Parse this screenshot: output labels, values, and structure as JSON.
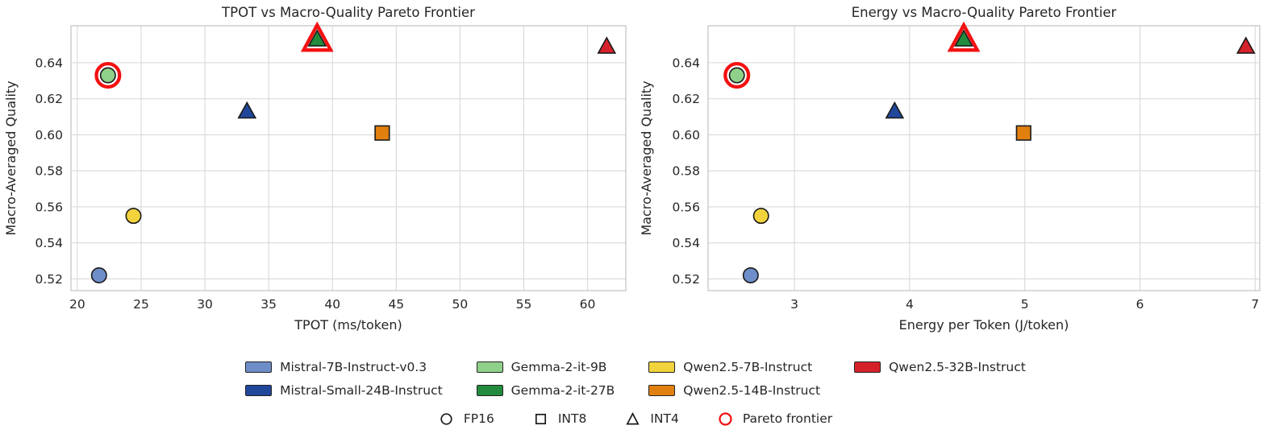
{
  "figure": {
    "background": "#ffffff",
    "text_color": "#262626",
    "grid_color": "#d9d9d9",
    "spine_color": "#c6c6c6",
    "marker_edge_color": "#1a1a1a",
    "pareto_color": "#f31111"
  },
  "model_colors": {
    "Mistral-7B-Instruct-v0.3": "#6d8ec9",
    "Mistral-Small-24B-Instruct": "#21479a",
    "Gemma-2-it-9B": "#8fd08a",
    "Gemma-2-it-27B": "#228b3d",
    "Qwen2.5-7B-Instruct": "#f2d33c",
    "Qwen2.5-14B-Instruct": "#e1800f",
    "Qwen2.5-32B-Instruct": "#d5222a"
  },
  "quant_shapes": {
    "FP16": "circle",
    "INT8": "square",
    "INT4": "triangle"
  },
  "chart_data": [
    {
      "type": "scatter",
      "title": "TPOT vs Macro-Quality Pareto Frontier",
      "xlabel": "TPOT (ms/token)",
      "ylabel": "Macro-Averaged Quality",
      "xlim": [
        19.5,
        63.0
      ],
      "ylim": [
        0.5135,
        0.6605
      ],
      "xticks": [
        20,
        25,
        30,
        35,
        40,
        45,
        50,
        55,
        60
      ],
      "xtick_labels": [
        "20",
        "25",
        "30",
        "35",
        "40",
        "45",
        "50",
        "55",
        "60"
      ],
      "yticks": [
        0.52,
        0.54,
        0.56,
        0.58,
        0.6,
        0.62,
        0.64
      ],
      "ytick_labels": [
        "0.52",
        "0.54",
        "0.56",
        "0.58",
        "0.60",
        "0.62",
        "0.64"
      ],
      "grid": true,
      "points": [
        {
          "model": "Mistral-7B-Instruct-v0.3",
          "quant": "FP16",
          "x": 21.7,
          "y": 0.522,
          "pareto": false
        },
        {
          "model": "Qwen2.5-7B-Instruct",
          "quant": "FP16",
          "x": 24.4,
          "y": 0.555,
          "pareto": false
        },
        {
          "model": "Gemma-2-it-9B",
          "quant": "FP16",
          "x": 22.4,
          "y": 0.633,
          "pareto": true
        },
        {
          "model": "Mistral-Small-24B-Instruct",
          "quant": "INT4",
          "x": 33.3,
          "y": 0.613,
          "pareto": false
        },
        {
          "model": "Gemma-2-it-27B",
          "quant": "INT4",
          "x": 38.8,
          "y": 0.653,
          "pareto": true
        },
        {
          "model": "Qwen2.5-14B-Instruct",
          "quant": "INT8",
          "x": 43.9,
          "y": 0.601,
          "pareto": false
        },
        {
          "model": "Qwen2.5-32B-Instruct",
          "quant": "INT4",
          "x": 61.5,
          "y": 0.649,
          "pareto": false
        }
      ]
    },
    {
      "type": "scatter",
      "title": "Energy vs Macro-Quality Pareto Frontier",
      "xlabel": "Energy per Token (J/token)",
      "ylabel": "Macro-Averaged Quality",
      "xlim": [
        2.25,
        7.04
      ],
      "ylim": [
        0.5135,
        0.6605
      ],
      "xticks": [
        3,
        4,
        5,
        6,
        7
      ],
      "xtick_labels": [
        "3",
        "4",
        "5",
        "6",
        "7"
      ],
      "yticks": [
        0.52,
        0.54,
        0.56,
        0.58,
        0.6,
        0.62,
        0.64
      ],
      "ytick_labels": [
        "0.52",
        "0.54",
        "0.56",
        "0.58",
        "0.60",
        "0.62",
        "0.64"
      ],
      "grid": true,
      "points": [
        {
          "model": "Mistral-7B-Instruct-v0.3",
          "quant": "FP16",
          "x": 2.62,
          "y": 0.522,
          "pareto": false
        },
        {
          "model": "Qwen2.5-7B-Instruct",
          "quant": "FP16",
          "x": 2.71,
          "y": 0.555,
          "pareto": false
        },
        {
          "model": "Gemma-2-it-9B",
          "quant": "FP16",
          "x": 2.5,
          "y": 0.633,
          "pareto": true
        },
        {
          "model": "Mistral-Small-24B-Instruct",
          "quant": "INT4",
          "x": 3.87,
          "y": 0.613,
          "pareto": false
        },
        {
          "model": "Gemma-2-it-27B",
          "quant": "INT4",
          "x": 4.47,
          "y": 0.653,
          "pareto": true
        },
        {
          "model": "Qwen2.5-14B-Instruct",
          "quant": "INT8",
          "x": 4.99,
          "y": 0.601,
          "pareto": false
        },
        {
          "model": "Qwen2.5-32B-Instruct",
          "quant": "INT4",
          "x": 6.92,
          "y": 0.649,
          "pareto": false
        }
      ]
    }
  ],
  "legend": {
    "models": [
      {
        "label": "Mistral-7B-Instruct-v0.3",
        "color": "#6d8ec9"
      },
      {
        "label": "Mistral-Small-24B-Instruct",
        "color": "#21479a"
      },
      {
        "label": "Gemma-2-it-9B",
        "color": "#8fd08a"
      },
      {
        "label": "Gemma-2-it-27B",
        "color": "#228b3d"
      },
      {
        "label": "Qwen2.5-7B-Instruct",
        "color": "#f2d33c"
      },
      {
        "label": "Qwen2.5-14B-Instruct",
        "color": "#e1800f"
      },
      {
        "label": "Qwen2.5-32B-Instruct",
        "color": "#d5222a"
      }
    ],
    "rows": 2,
    "quants": [
      {
        "label": "FP16",
        "shape": "circle",
        "color": "#1a1a1a"
      },
      {
        "label": "INT8",
        "shape": "square",
        "color": "#1a1a1a"
      },
      {
        "label": "INT4",
        "shape": "triangle",
        "color": "#1a1a1a"
      },
      {
        "label": "Pareto frontier",
        "shape": "circle",
        "color": "#f31111"
      }
    ]
  }
}
